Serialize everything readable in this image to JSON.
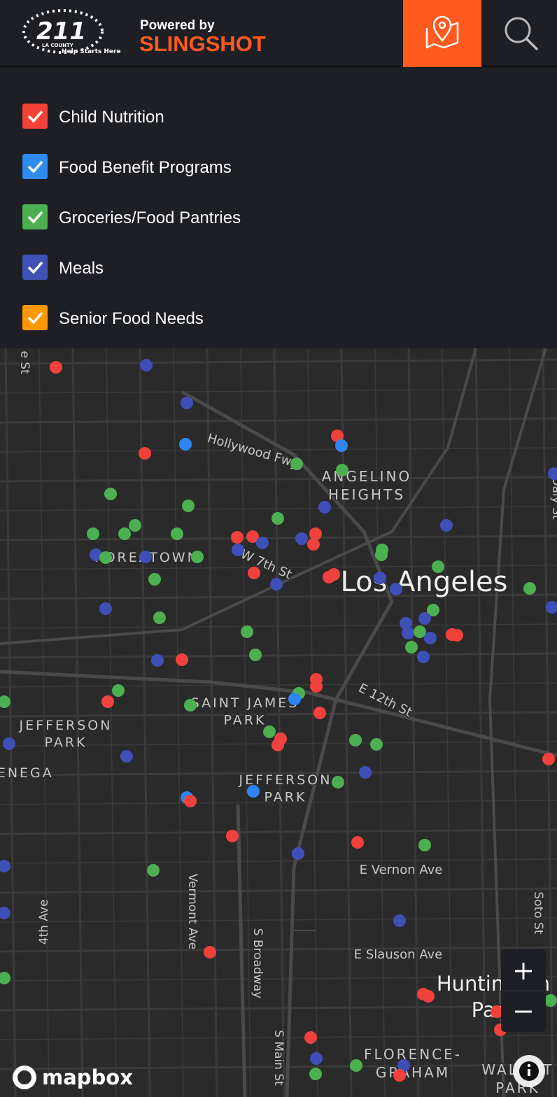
{
  "header": {
    "logo_number": "211",
    "logo_county": "LA COUNTY",
    "logo_tagline": "Help Starts Here",
    "powered_by": "Powered by",
    "brand": "SLINGSHOT"
  },
  "filters": [
    {
      "label": "Child Nutrition",
      "color": "#f44336"
    },
    {
      "label": "Food Benefit Programs",
      "color": "#2e8bf0"
    },
    {
      "label": "Groceries/Food Pantries",
      "color": "#4caf50"
    },
    {
      "label": "Meals",
      "color": "#3f51b5"
    },
    {
      "label": "Senior Food Needs",
      "color": "#ff9800"
    }
  ],
  "map_labels": [
    {
      "lines": [
        "Hollywood Fwy"
      ]
    },
    {
      "lines": [
        "ANGELINO",
        "HEIGHTS"
      ]
    },
    {
      "lines": [
        "Los Angeles"
      ]
    },
    {
      "lines": [
        "W 7th St"
      ]
    },
    {
      "lines": [
        "KOREATOWN"
      ]
    },
    {
      "lines": [
        "SAINT JAMES",
        "PARK"
      ]
    },
    {
      "lines": [
        "JEFFERSON",
        "PARK"
      ]
    },
    {
      "lines": [
        "JEFFERSON",
        "PARK"
      ]
    },
    {
      "lines": [
        "E 12th St"
      ]
    },
    {
      "lines": [
        "IENEGA"
      ]
    },
    {
      "lines": [
        "E Vernon Ave"
      ]
    },
    {
      "lines": [
        "Vermont Ave"
      ]
    },
    {
      "lines": [
        "S Broadway"
      ]
    },
    {
      "lines": [
        "4th Ave"
      ]
    },
    {
      "lines": [
        "S Main St"
      ]
    },
    {
      "lines": [
        "E Slauson Ave"
      ]
    },
    {
      "lines": [
        "Soto St"
      ]
    },
    {
      "lines": [
        "Huntington",
        "Park"
      ]
    },
    {
      "lines": [
        "FLORENCE-",
        "GRAHAM"
      ]
    },
    {
      "lines": [
        "WALNUT",
        "PARK"
      ]
    },
    {
      "lines": [
        "Daly St"
      ]
    },
    {
      "lines": [
        "e St"
      ]
    }
  ],
  "attribution": "mapbox"
}
